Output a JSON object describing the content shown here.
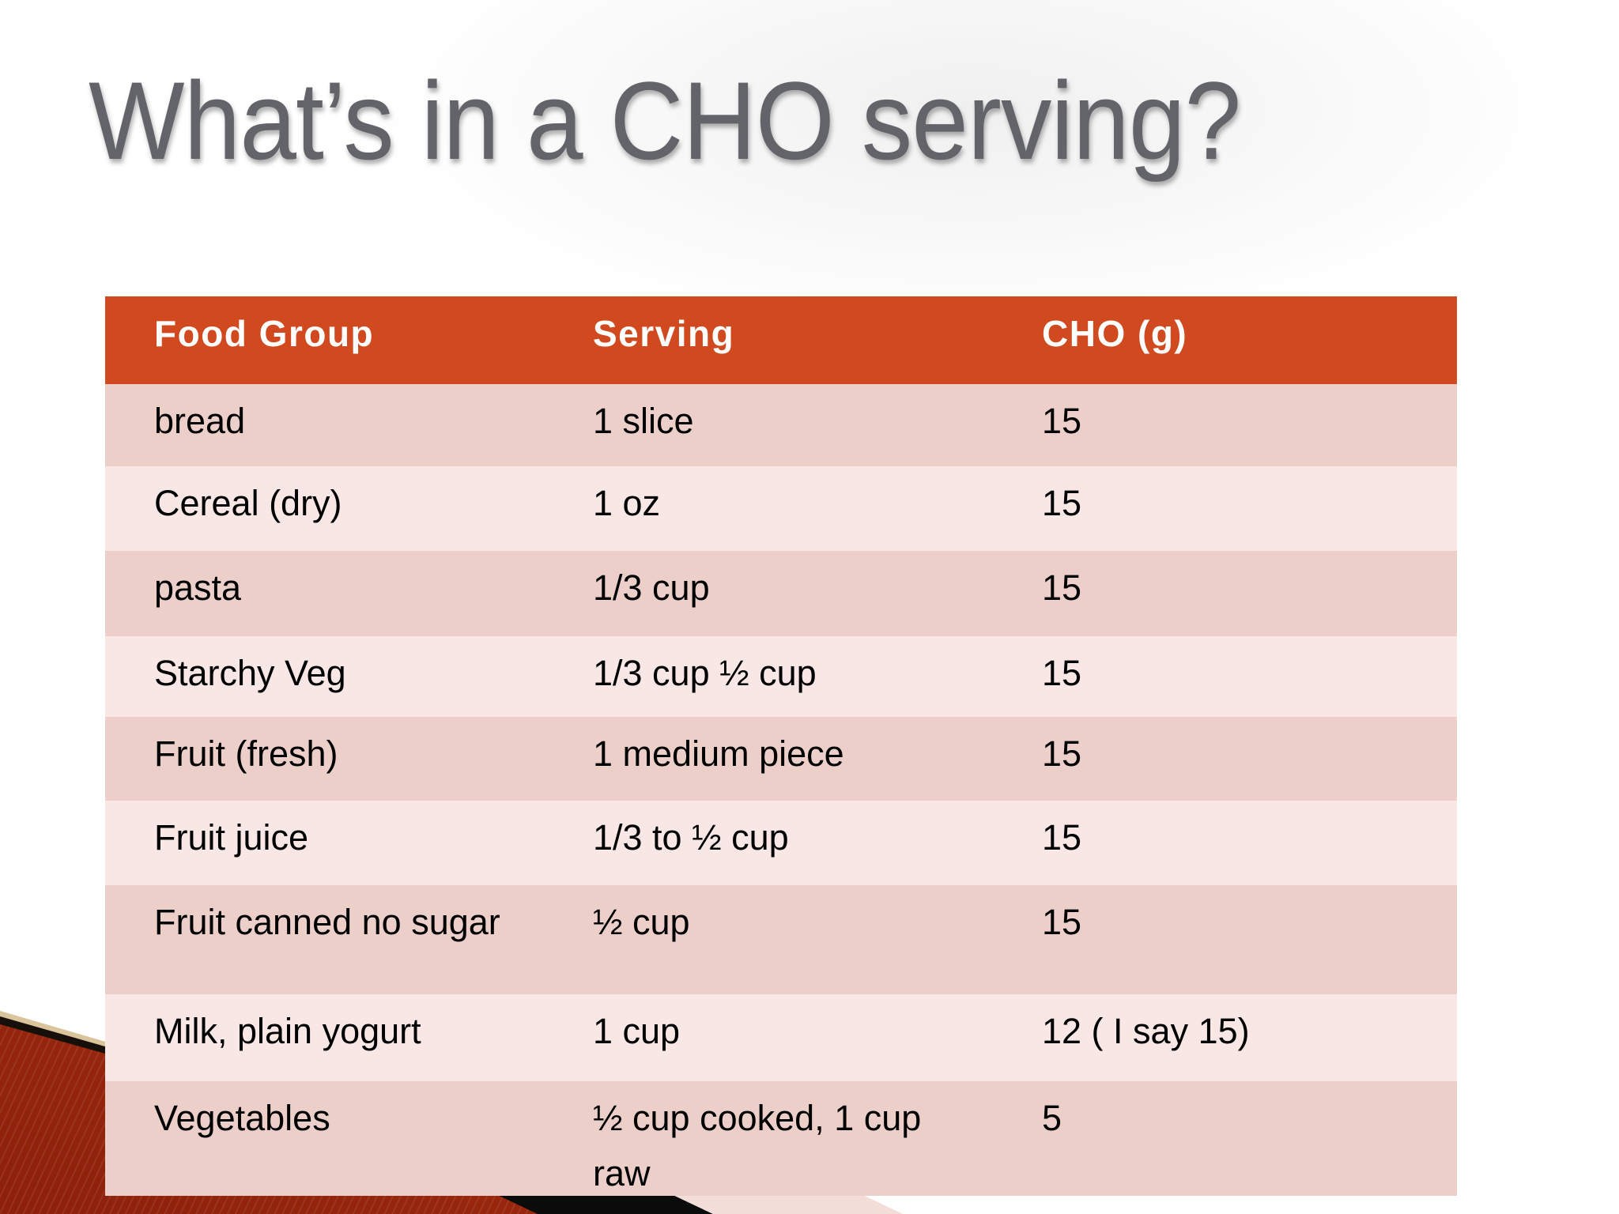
{
  "slide": {
    "title": "What’s in a CHO serving?"
  },
  "table": {
    "columns": [
      "Food Group",
      "Serving",
      "CHO (g)"
    ],
    "rows": [
      {
        "food_group": "bread",
        "serving": "1 slice",
        "cho_g": "15"
      },
      {
        "food_group": "Cereal (dry)",
        "serving": "1 oz",
        "cho_g": "15"
      },
      {
        "food_group": "pasta",
        "serving": "1/3 cup",
        "cho_g": "15"
      },
      {
        "food_group": "Starchy Veg",
        "serving": "1/3 cup ½ cup",
        "cho_g": "15"
      },
      {
        "food_group": "Fruit (fresh)",
        "serving": "1 medium piece",
        "cho_g": "15"
      },
      {
        "food_group": "Fruit juice",
        "serving": "1/3 to ½ cup",
        "cho_g": "15"
      },
      {
        "food_group": "Fruit canned no sugar",
        "serving": "½ cup",
        "cho_g": "15"
      },
      {
        "food_group": "Milk, plain yogurt",
        "serving": "1 cup",
        "cho_g": "12 ( I say 15)"
      },
      {
        "food_group": "Vegetables",
        "serving": "½ cup cooked, 1 cup raw",
        "cho_g": "5"
      }
    ]
  },
  "colors": {
    "header_bg": "#d14a1f",
    "header_text": "#ffffff",
    "row_dark": "#edcfca",
    "row_light": "#f8e7e5",
    "body_text": "#000000",
    "title_text": "#636469",
    "accent_red_wedge": "#c23d18",
    "accent_black_stripe": "#0b0b0b",
    "accent_pink_stripe": "#f3ddd9"
  }
}
